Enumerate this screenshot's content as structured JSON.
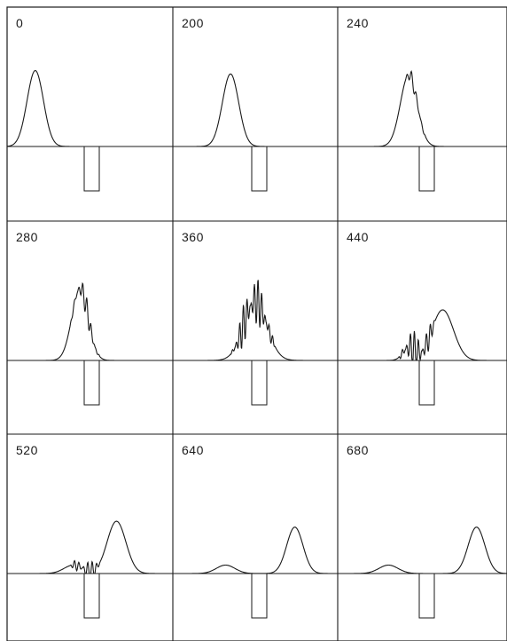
{
  "figure": {
    "line_color": "#1a1a1a",
    "background": "#ffffff",
    "panels": [
      {
        "label": "0",
        "row": 0,
        "col": 0,
        "packets": [
          {
            "center": 0.17,
            "width": 0.07,
            "height": 0.9
          }
        ],
        "noise": []
      },
      {
        "label": "200",
        "row": 0,
        "col": 1,
        "packets": [
          {
            "center": 0.35,
            "width": 0.07,
            "height": 0.86
          }
        ],
        "noise": []
      },
      {
        "label": "240",
        "row": 0,
        "col": 2,
        "packets": [
          {
            "center": 0.42,
            "width": 0.07,
            "height": 0.85
          }
        ],
        "noise": [
          {
            "from": 0.4,
            "to": 0.52,
            "amp": 0.1,
            "freq": 70
          }
        ]
      },
      {
        "label": "280",
        "row": 1,
        "col": 0,
        "packets": [
          {
            "center": 0.44,
            "width": 0.07,
            "height": 0.85
          }
        ],
        "noise": [
          {
            "from": 0.38,
            "to": 0.56,
            "amp": 0.14,
            "freq": 80
          }
        ]
      },
      {
        "label": "360",
        "row": 1,
        "col": 1,
        "packets": [
          {
            "center": 0.5,
            "width": 0.1,
            "height": 0.7
          }
        ],
        "noise": [
          {
            "from": 0.35,
            "to": 0.62,
            "amp": 0.3,
            "freq": 90
          }
        ]
      },
      {
        "label": "440",
        "row": 1,
        "col": 2,
        "packets": [
          {
            "center": 0.62,
            "width": 0.09,
            "height": 0.6
          },
          {
            "center": 0.42,
            "width": 0.05,
            "height": 0.15
          }
        ],
        "noise": [
          {
            "from": 0.36,
            "to": 0.58,
            "amp": 0.24,
            "freq": 85
          }
        ]
      },
      {
        "label": "520",
        "row": 2,
        "col": 0,
        "packets": [
          {
            "center": 0.66,
            "width": 0.08,
            "height": 0.62
          },
          {
            "center": 0.4,
            "width": 0.08,
            "height": 0.1
          }
        ],
        "noise": [
          {
            "from": 0.38,
            "to": 0.58,
            "amp": 0.12,
            "freq": 75
          }
        ]
      },
      {
        "label": "640",
        "row": 2,
        "col": 1,
        "packets": [
          {
            "center": 0.74,
            "width": 0.07,
            "height": 0.55
          },
          {
            "center": 0.32,
            "width": 0.08,
            "height": 0.1
          }
        ],
        "noise": []
      },
      {
        "label": "680",
        "row": 2,
        "col": 2,
        "packets": [
          {
            "center": 0.82,
            "width": 0.07,
            "height": 0.55
          },
          {
            "center": 0.3,
            "width": 0.08,
            "height": 0.1
          }
        ],
        "noise": []
      }
    ]
  }
}
